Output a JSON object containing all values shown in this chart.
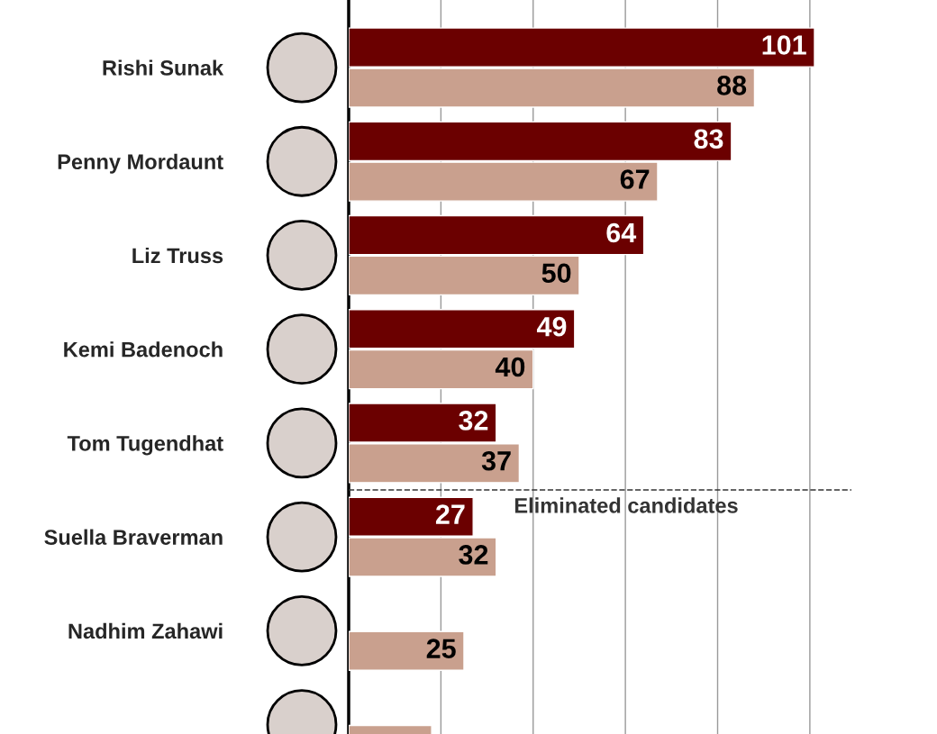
{
  "chart_data": {
    "type": "bar",
    "orientation": "horizontal",
    "categories": [
      "Rishi Sunak",
      "Penny Mordaunt",
      "Liz Truss",
      "Kemi Badenoch",
      "Tom Tugendhat",
      "Suella Braverman",
      "Nadhim Zahawi",
      null
    ],
    "series": [
      {
        "color": "#6b0000",
        "values": [
          101,
          83,
          64,
          49,
          32,
          27,
          null,
          null
        ],
        "value_labels": [
          "101",
          "83",
          "64",
          "49",
          "32",
          "27",
          null,
          null
        ]
      },
      {
        "color": "#c9a08e",
        "values": [
          88,
          67,
          50,
          40,
          37,
          32,
          25,
          18
        ],
        "value_labels": [
          "88",
          "67",
          "50",
          "40",
          "37",
          "32",
          "25",
          null
        ]
      }
    ],
    "xticks": [
      {
        "value": 20,
        "label": null
      },
      {
        "value": 40,
        "label": null
      },
      {
        "value": 60,
        "label": null
      },
      {
        "value": 80,
        "label": null
      },
      {
        "value": 100,
        "label": null
      }
    ],
    "grid": "x",
    "tick_labels": "y",
    "annotations": [
      "Eliminated candidates"
    ]
  }
}
